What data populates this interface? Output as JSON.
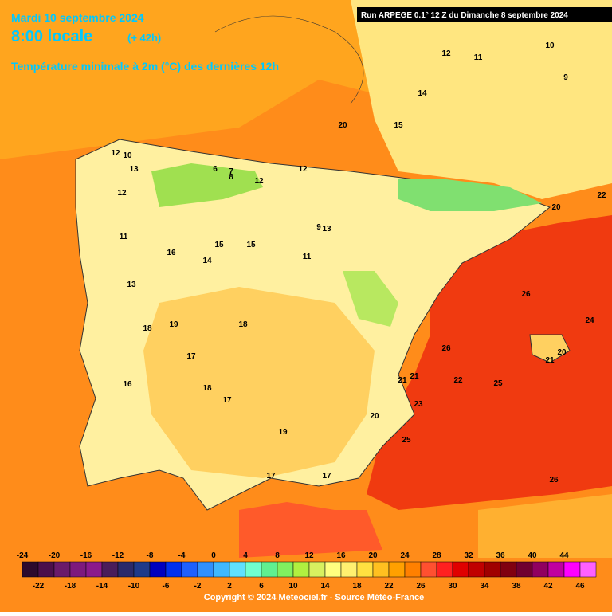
{
  "header": {
    "date": "Mardi 10 septembre 2024",
    "time": "8:00 locale",
    "lead": "(+ 42h)",
    "title": "Température minimale à 2m (°C) des dernières 12h",
    "run": "Run ARPEGE 0.1° 12 Z du Dimanche 8 septembre 2024"
  },
  "map_labels": [
    12,
    10,
    13,
    12,
    11,
    15,
    14,
    12,
    7,
    6,
    12,
    13,
    9,
    11,
    15,
    16,
    13,
    18,
    19,
    17,
    16,
    18,
    17,
    19,
    20,
    21,
    22,
    20,
    25,
    26,
    24,
    21,
    26,
    26,
    14,
    15,
    12,
    11,
    10,
    9,
    8,
    20,
    22,
    21,
    25,
    20,
    18,
    17,
    23,
    17
  ],
  "colorbar": {
    "top_ticks": [
      -24,
      -20,
      -16,
      -12,
      -8,
      -4,
      0,
      4,
      8,
      12,
      16,
      20,
      24,
      28,
      32,
      36,
      40,
      44
    ],
    "bottom_ticks": [
      -22,
      -18,
      -14,
      -10,
      -6,
      -2,
      2,
      6,
      10,
      14,
      18,
      22,
      26,
      30,
      34,
      38,
      42,
      46
    ],
    "colors": [
      "#2d0a2d",
      "#4b0f4b",
      "#6a1a6a",
      "#7d1a7d",
      "#8b1a8b",
      "#4a1d5a",
      "#2a2a6a",
      "#1e3a8a",
      "#0000c0",
      "#0030f0",
      "#1e60ff",
      "#3090ff",
      "#40b8ff",
      "#60e0ff",
      "#70ffd0",
      "#60f090",
      "#80f060",
      "#b0f040",
      "#d8f060",
      "#ffff80",
      "#fff070",
      "#ffe040",
      "#ffc020",
      "#ffa000",
      "#ff8000",
      "#ff5030",
      "#ff2020",
      "#e00000",
      "#c00000",
      "#a00000",
      "#800010",
      "#700030",
      "#900060",
      "#c000a0",
      "#ff00ff",
      "#ff60ff"
    ]
  },
  "footer": {
    "copyright": "Copyright © 2024 Meteociel.fr - Source Météo-France"
  }
}
